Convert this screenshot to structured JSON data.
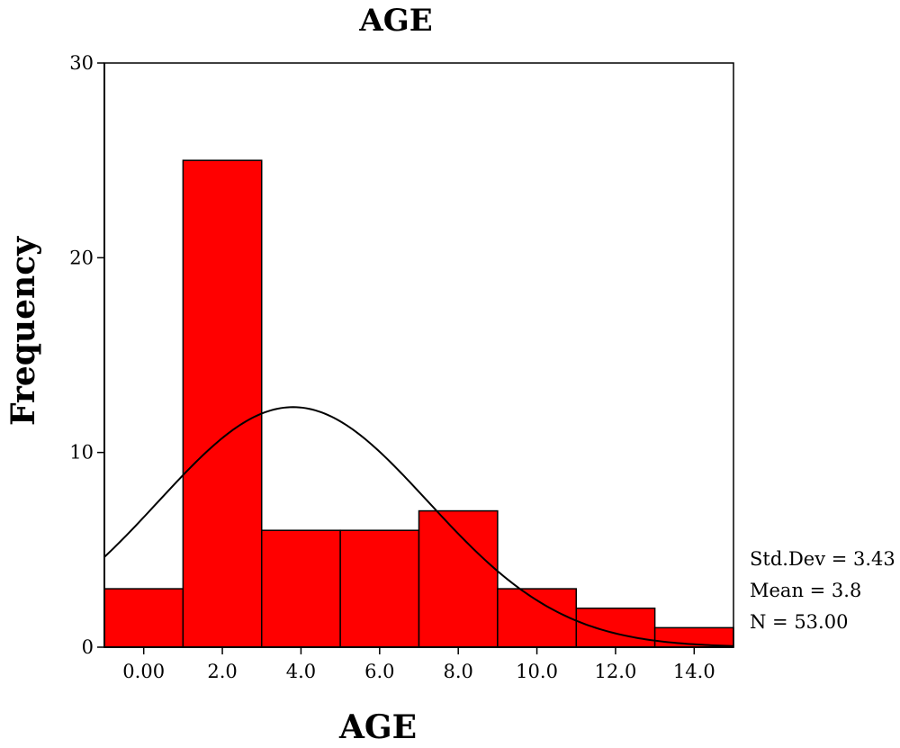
{
  "chart_data": {
    "type": "bar",
    "title": "AGE",
    "xlabel": "AGE",
    "ylabel": "Frequency",
    "bin_width": 2,
    "xlim": [
      -1,
      15
    ],
    "ylim": [
      0,
      30
    ],
    "yticks": [
      0,
      10,
      20,
      30
    ],
    "ytick_labels": [
      "0",
      "10",
      "20",
      "30"
    ],
    "categories": [
      "0.00",
      "2.0",
      "4.0",
      "6.0",
      "8.0",
      "10.0",
      "12.0",
      "14.0"
    ],
    "bin_centers": [
      0,
      2,
      4,
      6,
      8,
      10,
      12,
      14
    ],
    "values": [
      3,
      25,
      6,
      6,
      7,
      3,
      2,
      1
    ],
    "bar_color": "#ff0000",
    "normal_curve": {
      "mean": 3.8,
      "std_dev": 3.43,
      "n": 53
    },
    "stats": [
      "Std.Dev = 3.43",
      "Mean = 3.8",
      "N = 53.00"
    ],
    "grid": false,
    "legend": "none"
  }
}
